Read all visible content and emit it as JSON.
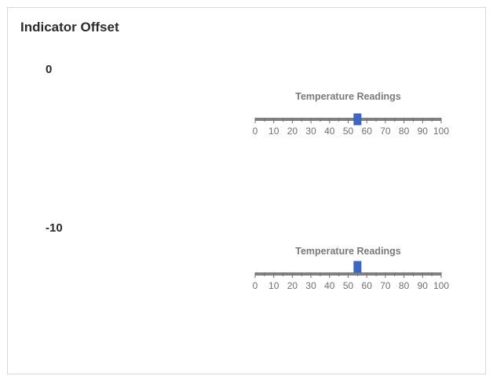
{
  "header": {
    "title": "Indicator Offset"
  },
  "chart_data": [
    {
      "type": "linear-gauge",
      "offset_label": "0",
      "title": "Temperature Readings",
      "range": [
        0,
        100
      ],
      "tick_labels": [
        "0",
        "10",
        "20",
        "30",
        "40",
        "50",
        "60",
        "70",
        "80",
        "90",
        "100"
      ],
      "value": 55,
      "indicator_offset": 0
    },
    {
      "type": "linear-gauge",
      "offset_label": "-10",
      "title": "Temperature Readings",
      "range": [
        0,
        100
      ],
      "tick_labels": [
        "0",
        "10",
        "20",
        "30",
        "40",
        "50",
        "60",
        "70",
        "80",
        "90",
        "100"
      ],
      "value": 55,
      "indicator_offset": -10
    }
  ],
  "colors": {
    "track": "#808080",
    "indicator": "#3b66c4",
    "tick": "#707070"
  }
}
